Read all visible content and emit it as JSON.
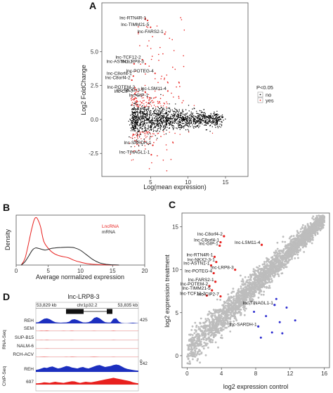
{
  "figure": {
    "panel_letters": [
      "A",
      "B",
      "C",
      "D"
    ]
  },
  "chart_data": [
    {
      "panel": "A",
      "type": "scatter",
      "xlabel": "Log(mean expression)",
      "ylabel": "Log2 FoldChange",
      "x_ticks": [
        5,
        10,
        15
      ],
      "y_ticks": [
        -2.5,
        0.0,
        2.5,
        5.0
      ],
      "y_tick_labels": [
        "-2.5",
        "0.0",
        "2.5",
        "5.0"
      ],
      "xlim": [
        -1.5,
        18
      ],
      "ylim": [
        -4.2,
        8.6
      ],
      "legend_title": "P<0.05",
      "legend_entries": [
        "no",
        "yes"
      ],
      "colors": {
        "no": "#000000",
        "yes": "#e8201e"
      },
      "labeled_points": [
        {
          "label": "lnc-RTN4R-1",
          "x": 4.6,
          "y": 7.3
        },
        {
          "label": "lnc-TIMM21-5",
          "x": 5.0,
          "y": 6.8
        },
        {
          "label": "lnc-FARS2-1",
          "x": 6.9,
          "y": 6.3
        },
        {
          "label": "lnc-TCF12-2",
          "x": 3.9,
          "y": 4.4
        },
        {
          "label": "lnc-ASTN1-1",
          "x": 2.8,
          "y": 4.1
        },
        {
          "label": "lnc-LRP8-3",
          "x": 4.3,
          "y": 4.1
        },
        {
          "label": "lnc-POTEG-4",
          "x": 5.6,
          "y": 3.4
        },
        {
          "label": "lnc-C8orf4-1",
          "x": 2.7,
          "y": 3.2
        },
        {
          "label": "lnc-C8orf4-2",
          "x": 2.5,
          "y": 2.9
        },
        {
          "label": "lnc-POTEM-2",
          "x": 3.1,
          "y": 2.2
        },
        {
          "label": "lnc-CIP-7",
          "x": 2.9,
          "y": 1.9
        },
        {
          "label": "lnc-NKX2-3-1",
          "x": 4.3,
          "y": 2.0
        },
        {
          "label": "lnc-LSM11-4",
          "x": 7.3,
          "y": 2.1
        },
        {
          "label": "lnc-GIP-1",
          "x": 4.9,
          "y": 1.6
        },
        {
          "label": "lnc-SARDH-1",
          "x": 5.3,
          "y": -1.9
        },
        {
          "label": "lnc-TINAGL1-1",
          "x": 5.1,
          "y": -2.6
        }
      ]
    },
    {
      "panel": "B",
      "type": "line",
      "xlabel": "Average normalized expression",
      "ylabel": "Density",
      "x_ticks": [
        0,
        5,
        10,
        15,
        20
      ],
      "xlim": [
        0,
        20
      ],
      "ylim": [
        0,
        0.21
      ],
      "series": [
        {
          "name": "LncRNA",
          "color": "#e8201e",
          "x": [
            0.8,
            1.4,
            2.0,
            2.4,
            2.8,
            3.1,
            3.4,
            3.8,
            4.3,
            5.0,
            5.8,
            6.6,
            7.4,
            8.2,
            9.0,
            10.0,
            11.0,
            12.0,
            13.0,
            14.0,
            15.0,
            16.0
          ],
          "y": [
            0.0,
            0.03,
            0.1,
            0.15,
            0.19,
            0.2,
            0.19,
            0.16,
            0.1,
            0.07,
            0.05,
            0.04,
            0.035,
            0.03,
            0.02,
            0.012,
            0.006,
            0.003,
            0.0015,
            0.0007,
            0.0002,
            0.0
          ]
        },
        {
          "name": "mRNA",
          "color": "#222222",
          "x": [
            0.8,
            1.4,
            2.0,
            2.5,
            3.0,
            3.5,
            4.0,
            4.5,
            5.0,
            5.5,
            6.0,
            7.0,
            8.0,
            9.0,
            10.0,
            11.0,
            12.0,
            13.0,
            14.0,
            15.0,
            16.0
          ],
          "y": [
            0.0,
            0.015,
            0.04,
            0.062,
            0.072,
            0.07,
            0.066,
            0.063,
            0.066,
            0.07,
            0.072,
            0.074,
            0.075,
            0.073,
            0.062,
            0.042,
            0.022,
            0.009,
            0.003,
            0.001,
            0.0
          ]
        }
      ]
    },
    {
      "panel": "C",
      "type": "scatter",
      "xlabel": "log2 expression control",
      "ylabel": "log2 expression treatment",
      "x_ticks": [
        0,
        4,
        8,
        12,
        16
      ],
      "y_ticks": [
        0,
        5,
        10,
        15
      ],
      "xlim": [
        -0.6,
        16.6
      ],
      "ylim": [
        -1.4,
        16.6
      ],
      "colors": {
        "background": "#bdbdbd",
        "up": "#e8201e",
        "down": "#2f2fd0"
      },
      "labeled_points": [
        {
          "label": "lnc-C8orf4-2",
          "x": 4.3,
          "y": 13.9
        },
        {
          "label": "lnc-C8orf4-1",
          "x": 3.9,
          "y": 13.2
        },
        {
          "label": "lnc-GIP-1",
          "x": 3.8,
          "y": 12.8
        },
        {
          "label": "lnc-LSM11-4",
          "x": 8.7,
          "y": 12.9
        },
        {
          "label": "lnc-RTN4R-1",
          "x": 3.2,
          "y": 11.5
        },
        {
          "label": "lnc-NKX2-3-1",
          "x": 3.4,
          "y": 10.9
        },
        {
          "label": "lnc-ASTN1-1",
          "x": 2.8,
          "y": 10.5
        },
        {
          "label": "lnc-LRP8-3",
          "x": 5.6,
          "y": 10.0
        },
        {
          "label": "lnc-POTEG-4",
          "x": 3.1,
          "y": 9.6
        },
        {
          "label": "lnc-FARS2-1",
          "x": 3.3,
          "y": 8.6
        },
        {
          "label": "lnc-POTEM-2",
          "x": 2.6,
          "y": 8.1
        },
        {
          "label": "lnc-TIMM21-5",
          "x": 2.9,
          "y": 7.6
        },
        {
          "label": "lnc-TCF12-2",
          "x": 2.3,
          "y": 7.0
        },
        {
          "label": "lnc-CIP2-7",
          "x": 3.9,
          "y": 6.9
        },
        {
          "label": "lnc-TINAGL1-1",
          "x": 10.2,
          "y": 5.9
        },
        {
          "label": "lnc-SARDH-1",
          "x": 8.3,
          "y": 3.4
        }
      ]
    },
    {
      "panel": "D",
      "type": "area",
      "title": "lnc-LRP8-3",
      "region_start": "53,829 kb",
      "region_end": "53,835 kb",
      "band": "chr1p32.2",
      "ymax_labels": [
        "425",
        "142"
      ],
      "ymin_label": "0",
      "group_labels": [
        "RNA-Seq",
        "ChIP-Seq"
      ],
      "tracks": [
        {
          "name": "REH",
          "color": "#1c2fbf",
          "group": "RNA-Seq",
          "values": [
            0.1,
            0.15,
            0.35,
            0.55,
            0.6,
            0.5,
            0.3,
            0.15,
            0.1,
            0.08,
            0.1,
            0.12,
            0.2,
            0.45,
            0.5,
            0.4,
            0.25,
            0.12,
            0.1,
            0.15,
            0.3,
            0.65,
            0.75,
            0.6,
            0.35,
            0.15,
            0.1,
            0.1,
            0.55,
            0.6,
            0.2,
            0.05,
            0.02,
            0.02,
            0.05,
            0.08,
            0.05,
            0.02
          ]
        },
        {
          "name": "SEM",
          "color": "#e8201e",
          "group": "RNA-Seq",
          "values": [
            0.02,
            0.03,
            0.05,
            0.04,
            0.06,
            0.03,
            0.02,
            0.02,
            0.03,
            0.02,
            0.04,
            0.03,
            0.02,
            0.05,
            0.03,
            0.02,
            0.02,
            0.03,
            0.02,
            0.02,
            0.03,
            0.04,
            0.02,
            0.02,
            0.03,
            0.02,
            0.02,
            0.02,
            0.05,
            0.02,
            0.02,
            0.02,
            0.02,
            0.02,
            0.02,
            0.02,
            0.02,
            0.02
          ]
        },
        {
          "name": "SUP-B15",
          "color": "#e8201e",
          "group": "RNA-Seq",
          "values": [
            0.02,
            0.02,
            0.04,
            0.03,
            0.05,
            0.03,
            0.02,
            0.03,
            0.02,
            0.02,
            0.03,
            0.02,
            0.02,
            0.04,
            0.03,
            0.02,
            0.02,
            0.02,
            0.02,
            0.03,
            0.02,
            0.03,
            0.02,
            0.02,
            0.02,
            0.02,
            0.02,
            0.02,
            0.04,
            0.02,
            0.02,
            0.02,
            0.02,
            0.02,
            0.02,
            0.02,
            0.02,
            0.02
          ]
        },
        {
          "name": "NALM-6",
          "color": "#e8201e",
          "group": "RNA-Seq",
          "values": [
            0.02,
            0.02,
            0.03,
            0.02,
            0.04,
            0.02,
            0.02,
            0.02,
            0.02,
            0.02,
            0.03,
            0.02,
            0.02,
            0.03,
            0.02,
            0.02,
            0.02,
            0.02,
            0.02,
            0.02,
            0.02,
            0.03,
            0.02,
            0.02,
            0.02,
            0.02,
            0.02,
            0.02,
            0.03,
            0.02,
            0.02,
            0.02,
            0.02,
            0.02,
            0.02,
            0.02,
            0.02,
            0.02
          ]
        },
        {
          "name": "RCH-ACV",
          "color": "#e8201e",
          "group": "RNA-Seq",
          "values": [
            0.02,
            0.03,
            0.04,
            0.05,
            0.04,
            0.03,
            0.02,
            0.02,
            0.03,
            0.02,
            0.03,
            0.04,
            0.03,
            0.05,
            0.04,
            0.03,
            0.02,
            0.02,
            0.03,
            0.02,
            0.04,
            0.05,
            0.04,
            0.03,
            0.02,
            0.02,
            0.02,
            0.03,
            0.04,
            0.03,
            0.02,
            0.02,
            0.02,
            0.02,
            0.02,
            0.02,
            0.02,
            0.02
          ]
        },
        {
          "name": "REH",
          "color": "#1c2fbf",
          "group": "ChIP-Seq",
          "values": [
            0.2,
            0.25,
            0.35,
            0.45,
            0.4,
            0.5,
            0.55,
            0.45,
            0.35,
            0.4,
            0.5,
            0.6,
            0.55,
            0.45,
            0.4,
            0.35,
            0.45,
            0.5,
            0.4,
            0.35,
            0.45,
            0.55,
            0.65,
            0.7,
            0.6,
            0.5,
            0.55,
            0.6,
            0.7,
            0.75,
            0.7,
            0.55,
            0.4,
            0.3,
            0.25,
            0.2,
            0.15,
            0.12
          ]
        },
        {
          "name": "697",
          "color": "#e8201e",
          "group": "ChIP-Seq",
          "values": [
            0.1,
            0.12,
            0.15,
            0.2,
            0.18,
            0.15,
            0.2,
            0.25,
            0.2,
            0.18,
            0.15,
            0.2,
            0.25,
            0.3,
            0.28,
            0.2,
            0.15,
            0.2,
            0.25,
            0.22,
            0.2,
            0.25,
            0.3,
            0.35,
            0.4,
            0.45,
            0.5,
            0.55,
            0.6,
            0.55,
            0.5,
            0.45,
            0.4,
            0.35,
            0.3,
            0.2,
            0.15,
            0.1
          ]
        }
      ]
    }
  ]
}
